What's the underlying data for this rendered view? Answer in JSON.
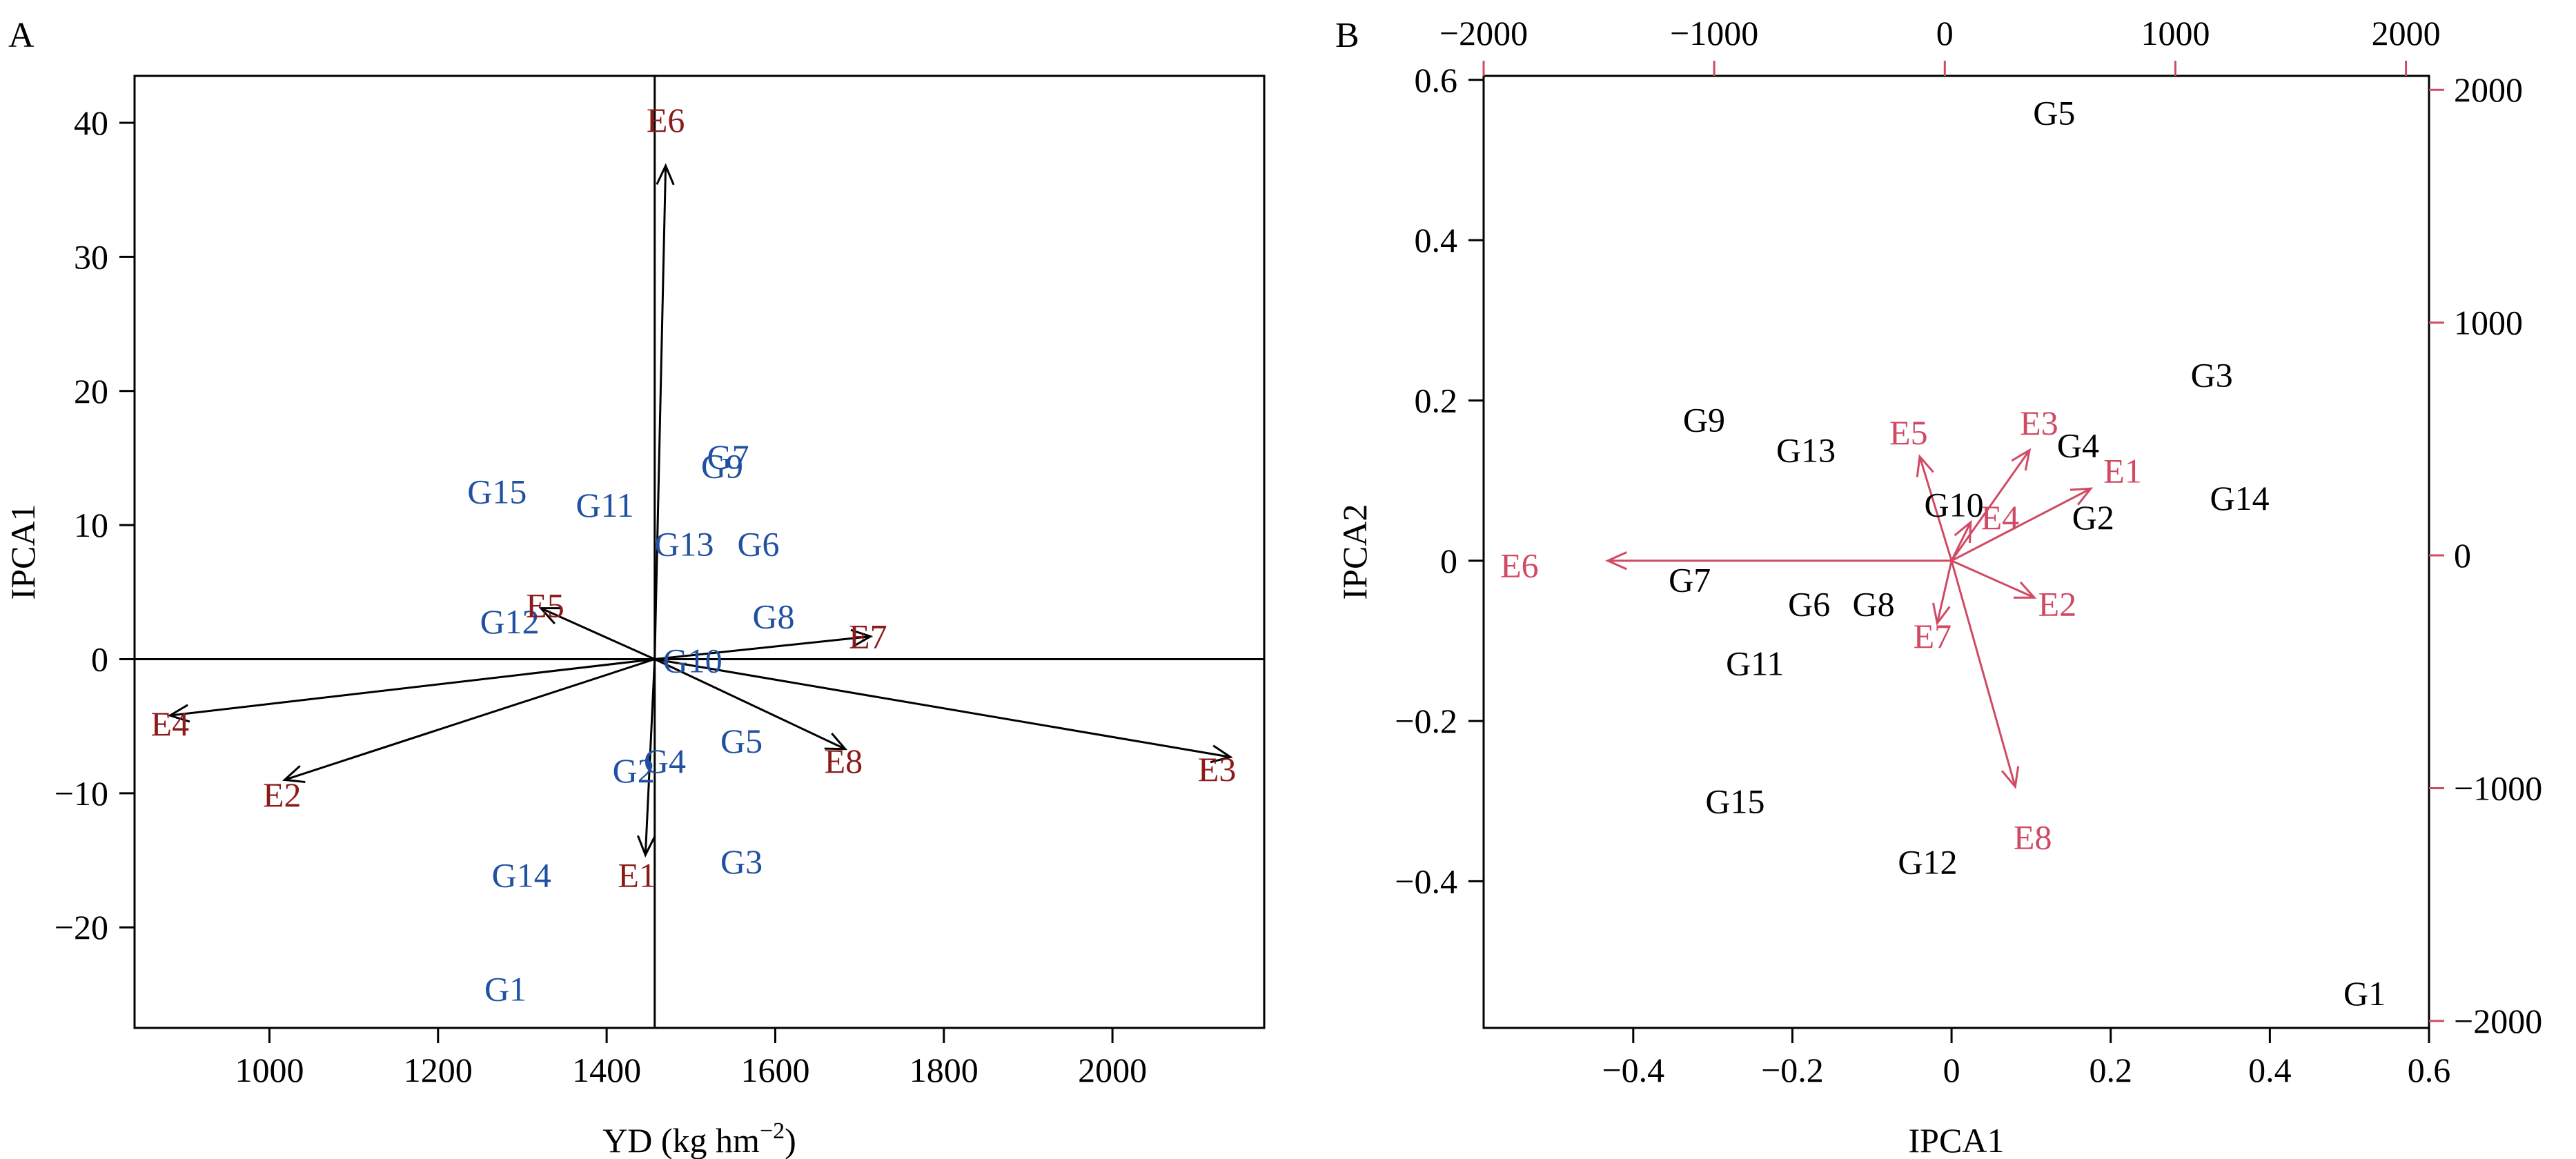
{
  "colors": {
    "axis": "#000000",
    "genotype_a": "#2050a0",
    "environment_a": "#8b1a1a",
    "genotype_b": "#000000",
    "environment_b": "#d04a64",
    "arrow_a": "#000000"
  },
  "chart_data": [
    {
      "type": "scatter",
      "panel_label": "A",
      "title": "",
      "xlabel": "YD (kg hm",
      "xlabel_sup": "−2",
      "xlabel_close": ")",
      "ylabel": "IPCA1",
      "xlim": [
        840,
        2180
      ],
      "ylim": [
        -27.5,
        43.5
      ],
      "xticks": [
        1000,
        1200,
        1400,
        1600,
        1800,
        2000
      ],
      "xtick_labels": [
        "1000",
        "1200",
        "1400",
        "1600",
        "1800",
        "2000"
      ],
      "yticks": [
        -20,
        -10,
        0,
        10,
        20,
        30,
        40
      ],
      "ytick_labels": [
        "−20",
        "−10",
        "0",
        "10",
        "20",
        "30",
        "40"
      ],
      "reference_lines": {
        "x": 1457,
        "y": 0
      },
      "origin": {
        "x": 1457,
        "y": 0
      },
      "genotypes": [
        {
          "label": "G1",
          "x": 1280,
          "y": -24.6
        },
        {
          "label": "G2",
          "x": 1432,
          "y": -8.3
        },
        {
          "label": "G3",
          "x": 1560,
          "y": -15.1
        },
        {
          "label": "G4",
          "x": 1469,
          "y": -7.6
        },
        {
          "label": "G5",
          "x": 1560,
          "y": -6.1
        },
        {
          "label": "G6",
          "x": 1580,
          "y": 8.6
        },
        {
          "label": "G7",
          "x": 1544,
          "y": 15.1
        },
        {
          "label": "G8",
          "x": 1598,
          "y": 3.2
        },
        {
          "label": "G9",
          "x": 1537,
          "y": 14.4
        },
        {
          "label": "G10",
          "x": 1502,
          "y": -0.1
        },
        {
          "label": "G11",
          "x": 1398,
          "y": 11.5
        },
        {
          "label": "G12",
          "x": 1285,
          "y": 2.8
        },
        {
          "label": "G13",
          "x": 1492,
          "y": 8.6
        },
        {
          "label": "G14",
          "x": 1299,
          "y": -16.1
        },
        {
          "label": "G15",
          "x": 1270,
          "y": 12.5
        }
      ],
      "environments": [
        {
          "label": "E1",
          "x": 1436,
          "y": -16.1,
          "arrow_end": [
            1446,
            -14.6
          ]
        },
        {
          "label": "E2",
          "x": 1015,
          "y": -10.1,
          "arrow_end": [
            1018,
            -9.0
          ]
        },
        {
          "label": "E3",
          "x": 2124,
          "y": -8.2,
          "arrow_end": [
            2140,
            -7.3
          ]
        },
        {
          "label": "E4",
          "x": 882,
          "y": -4.8,
          "arrow_end": [
            882,
            -4.2
          ]
        },
        {
          "label": "E5",
          "x": 1327,
          "y": 4.0,
          "arrow_end": [
            1322,
            3.8
          ]
        },
        {
          "label": "E6",
          "x": 1470,
          "y": 40.2,
          "arrow_end": [
            1470,
            36.8
          ]
        },
        {
          "label": "E7",
          "x": 1710,
          "y": 1.7,
          "arrow_end": [
            1713,
            1.7
          ]
        },
        {
          "label": "E8",
          "x": 1681,
          "y": -7.6,
          "arrow_end": [
            1683,
            -6.7
          ]
        }
      ]
    },
    {
      "type": "scatter",
      "panel_label": "B",
      "title": "",
      "xlabel": "IPCA1",
      "ylabel": "IPCA2",
      "xlim": [
        -0.588,
        0.6
      ],
      "ylim": [
        -0.583,
        0.605
      ],
      "xticks": [
        -0.4,
        -0.2,
        0,
        0.2,
        0.4,
        0.6
      ],
      "xtick_labels": [
        "−0.4",
        "−0.2",
        "0",
        "0.2",
        "0.4",
        "0.6"
      ],
      "yticks": [
        -0.4,
        -0.2,
        0,
        0.2,
        0.4,
        0.6
      ],
      "ytick_labels": [
        "−0.4",
        "−0.2",
        "0",
        "0.2",
        "0.4",
        "0.6"
      ],
      "top_axis": {
        "lim": [
          -2000,
          2100
        ],
        "ticks": [
          -2000,
          -1000,
          0,
          1000,
          2000
        ],
        "tick_labels": [
          "−2000",
          "−1000",
          "0",
          "1000",
          "2000"
        ]
      },
      "right_axis": {
        "lim": [
          -2030,
          2060
        ],
        "ticks": [
          -2000,
          -1000,
          0,
          1000,
          2000
        ],
        "tick_labels": [
          "−2000",
          "−1000",
          "0",
          "1000",
          "2000"
        ]
      },
      "genotypes": [
        {
          "label": "G1",
          "x": 0.519,
          "y": -0.54
        },
        {
          "label": "G2",
          "x": 0.178,
          "y": 0.054
        },
        {
          "label": "G3",
          "x": 0.327,
          "y": 0.232
        },
        {
          "label": "G4",
          "x": 0.159,
          "y": 0.144
        },
        {
          "label": "G5",
          "x": 0.129,
          "y": 0.559
        },
        {
          "label": "G6",
          "x": -0.179,
          "y": -0.054
        },
        {
          "label": "G7",
          "x": -0.329,
          "y": -0.024
        },
        {
          "label": "G8",
          "x": -0.098,
          "y": -0.054
        },
        {
          "label": "G9",
          "x": -0.311,
          "y": 0.176
        },
        {
          "label": "G10",
          "x": 0.003,
          "y": 0.07
        },
        {
          "label": "G11",
          "x": -0.247,
          "y": -0.128
        },
        {
          "label": "G12",
          "x": -0.03,
          "y": -0.376
        },
        {
          "label": "G13",
          "x": -0.183,
          "y": 0.138
        },
        {
          "label": "G14",
          "x": 0.362,
          "y": 0.078
        },
        {
          "label": "G15",
          "x": -0.272,
          "y": -0.3
        }
      ],
      "environments": [
        {
          "label": "E1",
          "x": 0.215,
          "y": 0.112,
          "arrow_end": [
            0.175,
            0.09
          ]
        },
        {
          "label": "E2",
          "x": 0.133,
          "y": -0.054,
          "arrow_end": [
            0.104,
            -0.046
          ]
        },
        {
          "label": "E3",
          "x": 0.11,
          "y": 0.172,
          "arrow_end": [
            0.098,
            0.138
          ]
        },
        {
          "label": "E4",
          "x": 0.061,
          "y": 0.054,
          "arrow_end": [
            0.024,
            0.048
          ]
        },
        {
          "label": "E5",
          "x": -0.054,
          "y": 0.16,
          "arrow_end": [
            -0.04,
            0.13
          ]
        },
        {
          "label": "E6",
          "x": -0.543,
          "y": -0.006,
          "arrow_end": [
            -0.432,
            0.0
          ]
        },
        {
          "label": "E7",
          "x": -0.024,
          "y": -0.094,
          "arrow_end": [
            -0.018,
            -0.078
          ]
        },
        {
          "label": "E8",
          "x": 0.102,
          "y": -0.345,
          "arrow_end": [
            0.08,
            -0.282
          ]
        }
      ]
    }
  ]
}
